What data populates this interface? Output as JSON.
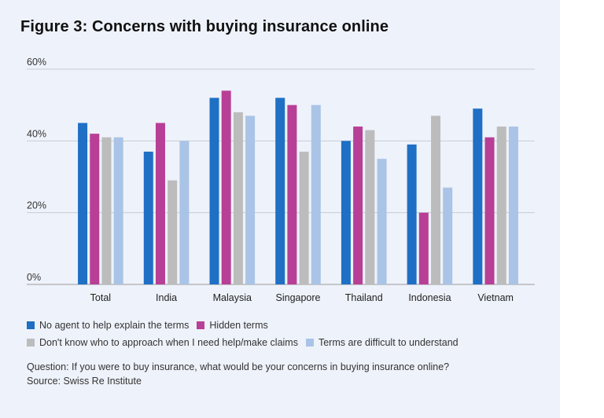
{
  "title": "Figure 3: Concerns with buying insurance online",
  "question": "Question: If you were to buy insurance, what would be your concerns in buying insurance online?",
  "source": "Source: Swiss Re Institute",
  "chart_data": {
    "type": "bar",
    "title": "Figure 3: Concerns with buying insurance online",
    "xlabel": "",
    "ylabel": "",
    "ylim": [
      0,
      60
    ],
    "yticks": [
      0,
      20,
      40,
      60
    ],
    "ytick_labels": [
      "0%",
      "20%",
      "40%",
      "60%"
    ],
    "grid": true,
    "legend_position": "bottom",
    "categories": [
      "Total",
      "India",
      "Malaysia",
      "Singapore",
      "Thailand",
      "Indonesia",
      "Vietnam"
    ],
    "series": [
      {
        "name": "No agent to help explain the terms",
        "color": "#1f6fc5",
        "values": [
          45,
          37,
          52,
          52,
          40,
          39,
          49
        ]
      },
      {
        "name": "Hidden terms",
        "color": "#b83f96",
        "values": [
          42,
          45,
          54,
          50,
          44,
          20,
          41
        ]
      },
      {
        "name": "Don't know who to approach when I need help/make claims",
        "color": "#bcbcbc",
        "values": [
          41,
          29,
          48,
          37,
          43,
          47,
          44
        ]
      },
      {
        "name": "Terms are difficult to understand",
        "color": "#a9c4e6",
        "values": [
          41,
          40,
          47,
          50,
          35,
          27,
          44
        ]
      }
    ]
  }
}
